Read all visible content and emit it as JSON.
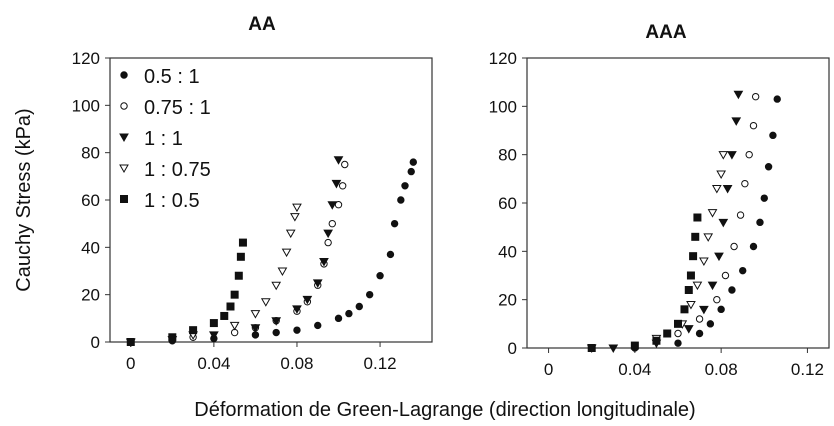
{
  "y_axis_label": "Cauchy Stress (kPa)",
  "x_axis_label": "Déformation de Green-Lagrange (direction longitudinale)",
  "chart_data": [
    {
      "type": "scatter",
      "title": "AA",
      "xlim": [
        -0.01,
        0.145
      ],
      "ylim": [
        0,
        120
      ],
      "x_ticks": [
        "0",
        "0.04",
        "0.08",
        "0.12"
      ],
      "y_ticks": [
        "0",
        "20",
        "40",
        "60",
        "80",
        "100",
        "120"
      ],
      "legend_position": "top-left",
      "legend": [
        "0.5 : 1",
        "0.75 : 1",
        "1 : 1",
        "1 : 0.75",
        "1 : 0.5"
      ],
      "series": [
        {
          "name": "0.5 : 1",
          "marker": "circle-filled",
          "points": [
            [
              0,
              0
            ],
            [
              0.02,
              0.5
            ],
            [
              0.04,
              1.5
            ],
            [
              0.06,
              3
            ],
            [
              0.07,
              4
            ],
            [
              0.08,
              5
            ],
            [
              0.09,
              7
            ],
            [
              0.1,
              10
            ],
            [
              0.105,
              12
            ],
            [
              0.11,
              15
            ],
            [
              0.115,
              20
            ],
            [
              0.12,
              28
            ],
            [
              0.125,
              37
            ],
            [
              0.127,
              50
            ],
            [
              0.13,
              60
            ],
            [
              0.132,
              66
            ],
            [
              0.135,
              72
            ],
            [
              0.136,
              76
            ]
          ]
        },
        {
          "name": "0.75 : 1",
          "marker": "circle-open",
          "points": [
            [
              0,
              0
            ],
            [
              0.03,
              2
            ],
            [
              0.05,
              4
            ],
            [
              0.06,
              6
            ],
            [
              0.07,
              9
            ],
            [
              0.08,
              13
            ],
            [
              0.085,
              17
            ],
            [
              0.09,
              24
            ],
            [
              0.093,
              33
            ],
            [
              0.095,
              42
            ],
            [
              0.097,
              50
            ],
            [
              0.1,
              58
            ],
            [
              0.102,
              66
            ],
            [
              0.103,
              75
            ]
          ]
        },
        {
          "name": "1 : 1",
          "marker": "triangle-down-filled",
          "points": [
            [
              0,
              0
            ],
            [
              0.02,
              1
            ],
            [
              0.04,
              3
            ],
            [
              0.06,
              6
            ],
            [
              0.07,
              9
            ],
            [
              0.08,
              14
            ],
            [
              0.085,
              18
            ],
            [
              0.09,
              25
            ],
            [
              0.093,
              34
            ],
            [
              0.095,
              46
            ],
            [
              0.097,
              58
            ],
            [
              0.099,
              67
            ],
            [
              0.1,
              77
            ]
          ]
        },
        {
          "name": "1 : 0.75",
          "marker": "triangle-down-open",
          "points": [
            [
              0,
              0
            ],
            [
              0.03,
              3
            ],
            [
              0.05,
              7
            ],
            [
              0.06,
              12
            ],
            [
              0.065,
              17
            ],
            [
              0.07,
              24
            ],
            [
              0.073,
              30
            ],
            [
              0.075,
              38
            ],
            [
              0.077,
              46
            ],
            [
              0.079,
              53
            ],
            [
              0.08,
              57
            ]
          ]
        },
        {
          "name": "1 : 0.5",
          "marker": "square-filled",
          "points": [
            [
              0,
              0
            ],
            [
              0.02,
              2
            ],
            [
              0.03,
              5
            ],
            [
              0.04,
              8
            ],
            [
              0.045,
              11
            ],
            [
              0.048,
              15
            ],
            [
              0.05,
              20
            ],
            [
              0.052,
              28
            ],
            [
              0.053,
              36
            ],
            [
              0.054,
              42
            ]
          ]
        }
      ]
    },
    {
      "type": "scatter",
      "title": "AAA",
      "xlim": [
        -0.01,
        0.13
      ],
      "ylim": [
        0,
        120
      ],
      "x_ticks": [
        "0",
        "0.04",
        "0.08",
        "0.12"
      ],
      "y_ticks": [
        "0",
        "20",
        "40",
        "60",
        "80",
        "100",
        "120"
      ],
      "series": [
        {
          "name": "0.5 : 1",
          "marker": "circle-filled",
          "points": [
            [
              0.04,
              0
            ],
            [
              0.06,
              2
            ],
            [
              0.07,
              6
            ],
            [
              0.075,
              10
            ],
            [
              0.08,
              16
            ],
            [
              0.085,
              24
            ],
            [
              0.09,
              32
            ],
            [
              0.095,
              42
            ],
            [
              0.098,
              52
            ],
            [
              0.1,
              62
            ],
            [
              0.102,
              75
            ],
            [
              0.104,
              88
            ],
            [
              0.106,
              103
            ]
          ]
        },
        {
          "name": "0.75 : 1",
          "marker": "circle-open",
          "points": [
            [
              0.02,
              0
            ],
            [
              0.04,
              1
            ],
            [
              0.06,
              6
            ],
            [
              0.07,
              12
            ],
            [
              0.078,
              20
            ],
            [
              0.082,
              30
            ],
            [
              0.086,
              42
            ],
            [
              0.089,
              55
            ],
            [
              0.091,
              68
            ],
            [
              0.093,
              80
            ],
            [
              0.095,
              92
            ],
            [
              0.096,
              104
            ]
          ]
        },
        {
          "name": "1 : 1",
          "marker": "triangle-down-filled",
          "points": [
            [
              0.03,
              0
            ],
            [
              0.05,
              2
            ],
            [
              0.065,
              8
            ],
            [
              0.072,
              16
            ],
            [
              0.076,
              26
            ],
            [
              0.079,
              38
            ],
            [
              0.081,
              52
            ],
            [
              0.083,
              66
            ],
            [
              0.085,
              80
            ],
            [
              0.087,
              94
            ],
            [
              0.088,
              105
            ]
          ]
        },
        {
          "name": "1 : 0.75",
          "marker": "triangle-down-open",
          "points": [
            [
              0.02,
              0
            ],
            [
              0.05,
              4
            ],
            [
              0.062,
              10
            ],
            [
              0.066,
              18
            ],
            [
              0.069,
              26
            ],
            [
              0.072,
              36
            ],
            [
              0.074,
              46
            ],
            [
              0.076,
              56
            ],
            [
              0.078,
              66
            ],
            [
              0.08,
              72
            ],
            [
              0.081,
              80
            ]
          ]
        },
        {
          "name": "1 : 0.5",
          "marker": "square-filled",
          "points": [
            [
              0.02,
              0
            ],
            [
              0.04,
              1
            ],
            [
              0.05,
              3
            ],
            [
              0.055,
              6
            ],
            [
              0.06,
              10
            ],
            [
              0.063,
              16
            ],
            [
              0.065,
              24
            ],
            [
              0.066,
              30
            ],
            [
              0.067,
              38
            ],
            [
              0.068,
              46
            ],
            [
              0.069,
              54
            ]
          ]
        }
      ]
    }
  ]
}
